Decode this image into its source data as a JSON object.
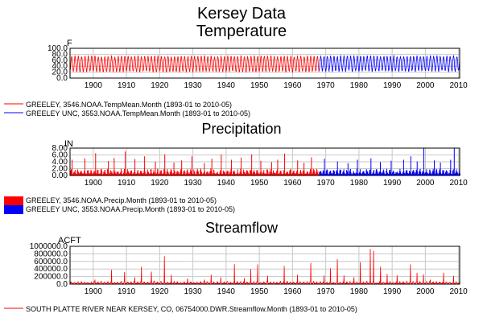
{
  "page": {
    "title": "Kersey Data"
  },
  "chart_data": [
    {
      "type": "line",
      "title": "Temperature",
      "ylabel": "F",
      "ylim": [
        0,
        100
      ],
      "yticks": [
        "0.0",
        "20.0",
        "40.0",
        "60.0",
        "80.0",
        "100.0"
      ],
      "xlim": [
        1893,
        2010.33
      ],
      "xticks": [
        "1900",
        "1910",
        "1920",
        "1930",
        "1940",
        "1950",
        "1960",
        "1970",
        "1980",
        "1990",
        "2000",
        "2010"
      ],
      "grid": true,
      "series": [
        {
          "name": "GREELEY, 3546.NOAA.TempMean.Month (1893-01 to 2010-05)",
          "color": "#ff0000",
          "x_range": [
            1893,
            1968
          ],
          "seasonal": {
            "min": 22,
            "max": 73
          }
        },
        {
          "name": "GREELEY UNC, 3553.NOAA.TempMean.Month (1893-01 to 2010-05)",
          "color": "#0000ff",
          "x_range": [
            1968,
            2010.33
          ],
          "seasonal": {
            "min": 24,
            "max": 74
          }
        }
      ],
      "legend_style": "line"
    },
    {
      "type": "bar",
      "title": "Precipitation",
      "ylabel": "IN",
      "ylim": [
        0,
        8
      ],
      "yticks": [
        "0.00",
        "2.00",
        "4.00",
        "6.00",
        "8.00"
      ],
      "xlim": [
        1893,
        2010.33
      ],
      "xticks": [
        "1900",
        "1910",
        "1920",
        "1930",
        "1940",
        "1950",
        "1960",
        "1970",
        "1980",
        "1990",
        "2000",
        "2010"
      ],
      "grid": true,
      "series": [
        {
          "name": "GREELEY, 3546.NOAA.Precip.Month (1893-01 to 2010-05)",
          "color": "#ff0000",
          "x_range": [
            1893,
            1968
          ],
          "peaks": [
            [
              1893.5,
              4.6
            ],
            [
              1897.3,
              5.0
            ],
            [
              1900.6,
              6.5
            ],
            [
              1904.4,
              4.2
            ],
            [
              1906.2,
              5.1
            ],
            [
              1909.5,
              7.0
            ],
            [
              1912.4,
              4.8
            ],
            [
              1915.3,
              5.6
            ],
            [
              1918.6,
              4.0
            ],
            [
              1921.4,
              6.2
            ],
            [
              1924.2,
              3.8
            ],
            [
              1926.5,
              4.4
            ],
            [
              1929.6,
              5.6
            ],
            [
              1933.3,
              3.6
            ],
            [
              1935.6,
              4.9
            ],
            [
              1938.4,
              6.1
            ],
            [
              1941.5,
              4.6
            ],
            [
              1944.4,
              5.2
            ],
            [
              1947.6,
              6.2
            ],
            [
              1950.3,
              4.3
            ],
            [
              1953.6,
              3.9
            ],
            [
              1955.4,
              4.6
            ],
            [
              1957.5,
              6.4
            ],
            [
              1961.4,
              4.4
            ],
            [
              1963.3,
              3.7
            ],
            [
              1965.6,
              5.3
            ]
          ]
        },
        {
          "name": "GREELEY UNC, 3553.NOAA.Precip.Month (1893-01 to 2010-05)",
          "color": "#0000ff",
          "x_range": [
            1968,
            2010.33
          ],
          "peaks": [
            [
              1969.5,
              4.9
            ],
            [
              1973.4,
              4.1
            ],
            [
              1976.6,
              3.6
            ],
            [
              1979.4,
              4.6
            ],
            [
              1983.5,
              5.0
            ],
            [
              1986.3,
              3.9
            ],
            [
              1989.6,
              4.3
            ],
            [
              1993.3,
              4.6
            ],
            [
              1995.5,
              5.6
            ],
            [
              1997.4,
              4.1
            ],
            [
              1999.4,
              8.0
            ],
            [
              2002.6,
              4.4
            ],
            [
              2004.4,
              3.8
            ],
            [
              2007.5,
              4.6
            ],
            [
              2008.6,
              8.0
            ]
          ]
        }
      ],
      "legend_style": "box"
    },
    {
      "type": "line",
      "title": "Streamflow",
      "ylabel": "ACFT",
      "ylim": [
        0,
        1000000
      ],
      "yticks": [
        "0.0",
        "200000.0",
        "400000.0",
        "600000.0",
        "800000.0",
        "1000000.0"
      ],
      "xlim": [
        1893,
        2010.33
      ],
      "xticks": [
        "1900",
        "1910",
        "1920",
        "1930",
        "1940",
        "1950",
        "1960",
        "1970",
        "1980",
        "1990",
        "2000",
        "2010"
      ],
      "grid": true,
      "series": [
        {
          "name": "SOUTH PLATTE RIVER NEAR KERSEY, CO, 06754000.DWR.Streamflow.Month (1893-01 to 2010-05)",
          "color": "#ff0000",
          "x_range": [
            1893,
            2010.33
          ],
          "peaks": [
            [
              1900.5,
              120000
            ],
            [
              1905.5,
              380000
            ],
            [
              1909.4,
              320000
            ],
            [
              1912.5,
              180000
            ],
            [
              1914.5,
              460000
            ],
            [
              1917.5,
              330000
            ],
            [
              1921.4,
              740000
            ],
            [
              1923.5,
              250000
            ],
            [
              1928.4,
              150000
            ],
            [
              1933.5,
              120000
            ],
            [
              1935.5,
              250000
            ],
            [
              1938.4,
              180000
            ],
            [
              1942.5,
              530000
            ],
            [
              1945.5,
              160000
            ],
            [
              1947.4,
              400000
            ],
            [
              1949.5,
              520000
            ],
            [
              1952.5,
              220000
            ],
            [
              1957.5,
              480000
            ],
            [
              1961.5,
              250000
            ],
            [
              1965.5,
              560000
            ],
            [
              1969.5,
              230000
            ],
            [
              1971.4,
              420000
            ],
            [
              1973.5,
              660000
            ],
            [
              1975.5,
              230000
            ],
            [
              1978.5,
              180000
            ],
            [
              1980.4,
              580000
            ],
            [
              1983.4,
              930000
            ],
            [
              1984.4,
              880000
            ],
            [
              1986.5,
              460000
            ],
            [
              1988.5,
              270000
            ],
            [
              1991.5,
              230000
            ],
            [
              1995.5,
              520000
            ],
            [
              1997.5,
              300000
            ],
            [
              1999.4,
              260000
            ],
            [
              2001.5,
              120000
            ],
            [
              2005.5,
              300000
            ],
            [
              2008.5,
              220000
            ]
          ]
        }
      ],
      "legend_style": "line"
    }
  ]
}
